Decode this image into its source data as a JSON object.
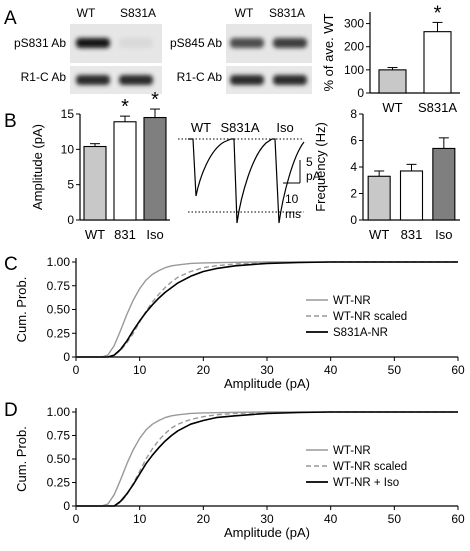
{
  "panels": {
    "A": "A",
    "B": "B",
    "C": "C",
    "D": "D"
  },
  "panel_a": {
    "blots": [
      {
        "lanes": [
          "WT",
          "S831A"
        ],
        "rows": [
          "pS831 Ab",
          "R1-C Ab"
        ],
        "band_intensity": [
          [
            0.95,
            0.08
          ],
          [
            0.85,
            0.85
          ]
        ]
      },
      {
        "lanes": [
          "WT",
          "S831A"
        ],
        "rows": [
          "pS845 Ab",
          "R1-C Ab"
        ],
        "band_intensity": [
          [
            0.7,
            0.78
          ],
          [
            0.85,
            0.85
          ]
        ]
      }
    ],
    "star": "*"
  },
  "panel_b": {
    "traces": {
      "labels": [
        "WT",
        "S831A",
        "Iso"
      ],
      "scale_y": [
        "5",
        "pA"
      ],
      "scale_x": [
        "10",
        "ms"
      ]
    },
    "stars": [
      "*",
      "*"
    ]
  },
  "colors": {
    "light_gray": "#c8c8c8",
    "dark_gray": "#7f7f7f",
    "wt_line": "#999999",
    "scaled_line": "#999999",
    "black": "#000000"
  },
  "chart_data": [
    {
      "type": "bar",
      "id": "A-quant",
      "categories": [
        "WT",
        "S831A"
      ],
      "values": [
        100,
        265
      ],
      "errors": [
        10,
        40
      ],
      "fills": [
        "light_gray",
        "white"
      ],
      "ylabel": "% of ave. WT",
      "ylim": [
        0,
        350
      ],
      "yticks": [
        0,
        100,
        200,
        300
      ],
      "significant": [
        false,
        true
      ]
    },
    {
      "type": "bar",
      "id": "B-amplitude",
      "categories": [
        "WT",
        "831",
        "Iso"
      ],
      "values": [
        10.4,
        13.9,
        14.5
      ],
      "errors": [
        0.4,
        0.8,
        1.2
      ],
      "fills": [
        "light_gray",
        "white",
        "dark_gray"
      ],
      "ylabel": "Amplitude (pA)",
      "ylim": [
        0,
        15
      ],
      "yticks": [
        0,
        5,
        10,
        15
      ],
      "significant": [
        false,
        true,
        true
      ]
    },
    {
      "type": "bar",
      "id": "B-frequency",
      "categories": [
        "WT",
        "831",
        "Iso"
      ],
      "values": [
        3.3,
        3.7,
        5.4
      ],
      "errors": [
        0.4,
        0.5,
        0.8
      ],
      "fills": [
        "light_gray",
        "white",
        "dark_gray"
      ],
      "ylabel": "Frequency (Hz)",
      "ylim": [
        0,
        8
      ],
      "yticks": [
        0,
        2,
        4,
        6,
        8
      ]
    },
    {
      "type": "line",
      "id": "C-cumulative",
      "xlabel": "Amplitude (pA)",
      "ylabel": "Cum. Prob.",
      "xlim": [
        0,
        60
      ],
      "ylim": [
        0,
        1
      ],
      "xticks": [
        0,
        10,
        20,
        30,
        40,
        50,
        60
      ],
      "yticks": [
        0,
        0.25,
        0.5,
        0.75,
        1.0
      ],
      "ytick_labels": [
        "0",
        "0.25",
        "0.50",
        "0.75",
        "1.00"
      ],
      "legend_position": "right",
      "series": [
        {
          "name": "WT-NR",
          "color": "wt_line",
          "dash": false,
          "x": [
            0,
            4,
            5,
            6,
            7,
            8,
            9,
            10,
            11,
            12,
            13,
            14,
            15,
            16,
            18,
            20,
            25,
            30,
            40,
            60
          ],
          "y": [
            0,
            0,
            0.02,
            0.12,
            0.28,
            0.45,
            0.6,
            0.72,
            0.81,
            0.87,
            0.91,
            0.94,
            0.96,
            0.97,
            0.985,
            0.99,
            0.997,
            1.0,
            1.0,
            1.0
          ]
        },
        {
          "name": "WT-NR scaled",
          "color": "scaled_line",
          "dash": true,
          "x": [
            0,
            5,
            6,
            7,
            8,
            9,
            10,
            11,
            12,
            13,
            14,
            15,
            16,
            18,
            20,
            22,
            25,
            30,
            40,
            60
          ],
          "y": [
            0,
            0,
            0.02,
            0.07,
            0.15,
            0.25,
            0.37,
            0.48,
            0.58,
            0.66,
            0.73,
            0.79,
            0.84,
            0.9,
            0.94,
            0.96,
            0.98,
            0.99,
            1.0,
            1.0
          ]
        },
        {
          "name": "S831A-NR",
          "color": "black",
          "dash": false,
          "x": [
            0,
            5,
            6,
            7,
            8,
            9,
            10,
            11,
            12,
            13,
            14,
            15,
            16,
            18,
            20,
            22,
            25,
            30,
            35,
            40,
            60
          ],
          "y": [
            0,
            0,
            0.02,
            0.08,
            0.17,
            0.28,
            0.38,
            0.47,
            0.55,
            0.62,
            0.68,
            0.73,
            0.78,
            0.85,
            0.9,
            0.93,
            0.96,
            0.985,
            0.995,
            1.0,
            1.0
          ]
        }
      ]
    },
    {
      "type": "line",
      "id": "D-cumulative",
      "xlabel": "Amplitude (pA)",
      "ylabel": "Cum. Prob.",
      "xlim": [
        0,
        60
      ],
      "ylim": [
        0,
        1
      ],
      "xticks": [
        0,
        10,
        20,
        30,
        40,
        50,
        60
      ],
      "yticks": [
        0,
        0.25,
        0.5,
        0.75,
        1.0
      ],
      "ytick_labels": [
        "0",
        "0.25",
        "0.50",
        "0.75",
        "1.00"
      ],
      "legend_position": "right",
      "series": [
        {
          "name": "WT-NR",
          "color": "wt_line",
          "dash": false,
          "x": [
            0,
            4,
            5,
            6,
            7,
            8,
            9,
            10,
            11,
            12,
            13,
            14,
            15,
            16,
            18,
            20,
            25,
            30,
            40,
            60
          ],
          "y": [
            0,
            0,
            0.02,
            0.12,
            0.28,
            0.45,
            0.6,
            0.72,
            0.81,
            0.87,
            0.91,
            0.94,
            0.96,
            0.97,
            0.985,
            0.99,
            0.997,
            1.0,
            1.0,
            1.0
          ]
        },
        {
          "name": "WT-NR scaled",
          "color": "scaled_line",
          "dash": true,
          "x": [
            0,
            6,
            7,
            8,
            9,
            10,
            11,
            12,
            13,
            14,
            15,
            16,
            18,
            20,
            22,
            25,
            30,
            40,
            60
          ],
          "y": [
            0,
            0,
            0.04,
            0.12,
            0.24,
            0.37,
            0.5,
            0.61,
            0.7,
            0.77,
            0.83,
            0.87,
            0.92,
            0.95,
            0.97,
            0.985,
            0.995,
            1.0,
            1.0
          ]
        },
        {
          "name": "WT-NR + Iso",
          "color": "black",
          "dash": false,
          "x": [
            0,
            6,
            7,
            8,
            9,
            10,
            11,
            12,
            13,
            14,
            15,
            16,
            18,
            20,
            22,
            25,
            30,
            35,
            40,
            60
          ],
          "y": [
            0,
            0,
            0.05,
            0.13,
            0.23,
            0.34,
            0.45,
            0.54,
            0.62,
            0.69,
            0.75,
            0.8,
            0.87,
            0.91,
            0.94,
            0.96,
            0.985,
            0.995,
            1.0,
            1.0
          ]
        }
      ]
    }
  ]
}
